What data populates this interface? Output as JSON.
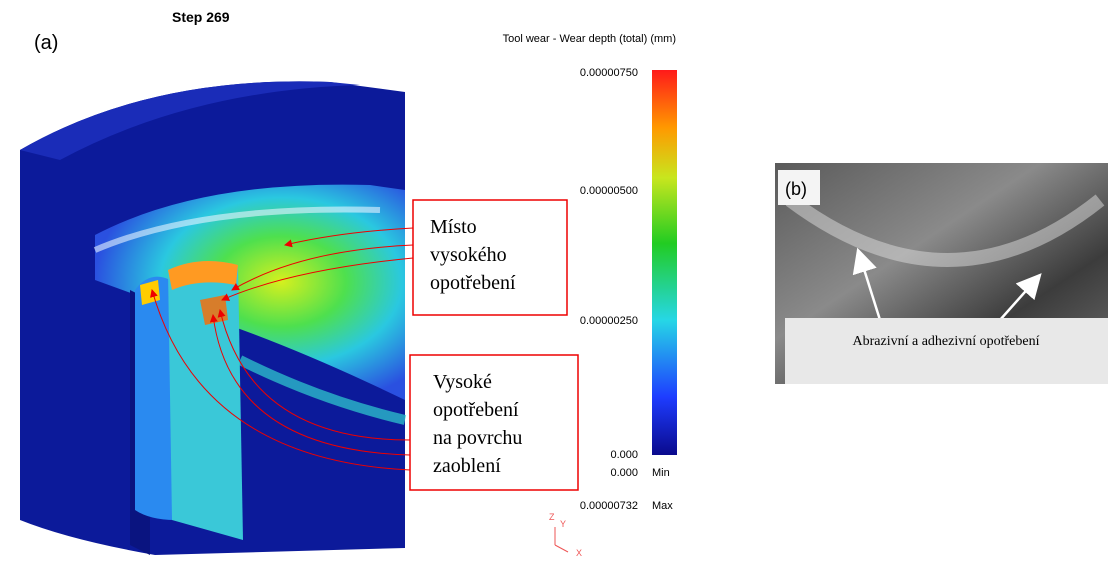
{
  "panel_a": {
    "label": "(a)",
    "step": "Step 269",
    "legend_title": "Tool wear - Wear depth (total) (mm)",
    "scale_labels": [
      "0.00000750",
      "0.00000500",
      "0.00000250",
      "0.000"
    ],
    "min": {
      "value": "0.000",
      "label": "Min"
    },
    "max": {
      "value": "0.00000732",
      "label": "Max"
    },
    "axes": [
      "Z",
      "Y",
      "X"
    ],
    "callouts": [
      {
        "lines": [
          "Místo",
          "vysokého",
          "opotřebení"
        ]
      },
      {
        "lines": [
          "Vysoké",
          "opotřebení",
          "na povrchu",
          "zaoblení"
        ]
      }
    ]
  },
  "panel_b": {
    "label": "(b)",
    "caption": "Abrazivní a adhezivní opotřebení"
  }
}
